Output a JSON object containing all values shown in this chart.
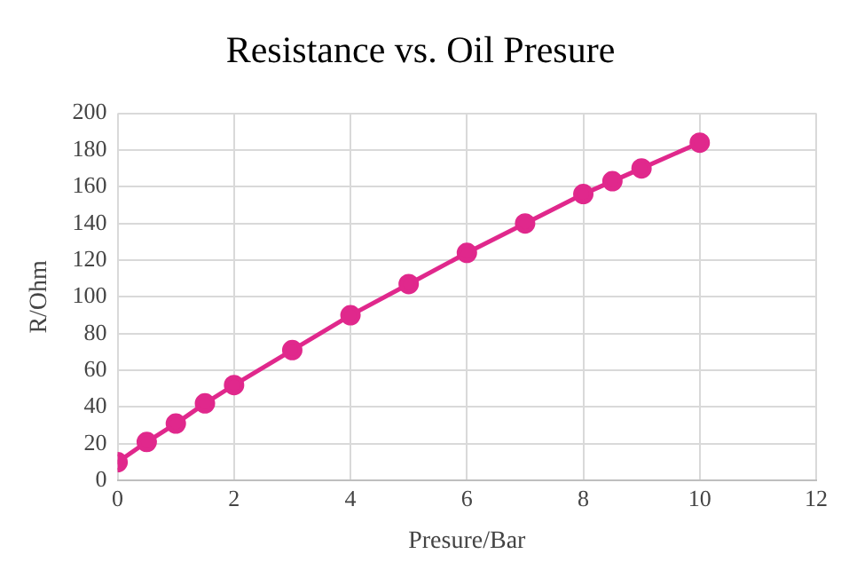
{
  "chart_data": {
    "type": "line",
    "title": "Resistance vs. Oil Presure",
    "xlabel": "Presure/Bar",
    "ylabel": "R/Ohm",
    "x": [
      0,
      0.5,
      1,
      1.5,
      2,
      3,
      4,
      5,
      6,
      7,
      8,
      8.5,
      9,
      10
    ],
    "series": [
      {
        "color": "#e0288c",
        "values": [
          10,
          21,
          31,
          42,
          52,
          71,
          90,
          107,
          124,
          140,
          156,
          163,
          170,
          184
        ]
      }
    ],
    "xlim": [
      0,
      12
    ],
    "xticks": [
      0,
      2,
      4,
      6,
      8,
      10,
      12
    ],
    "ylim": [
      0,
      200
    ],
    "yticks": [
      0,
      20,
      40,
      60,
      80,
      100,
      120,
      140,
      160,
      180,
      200
    ],
    "grid": true,
    "marker": "circle",
    "line_style": "solid",
    "legend": false
  }
}
